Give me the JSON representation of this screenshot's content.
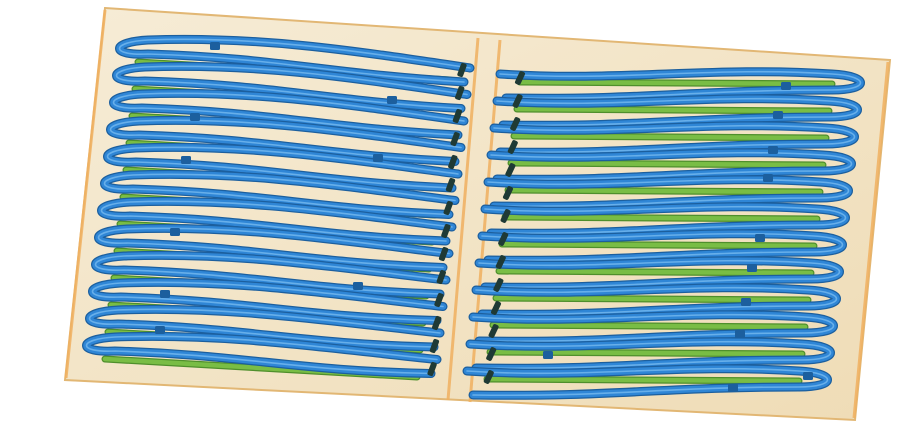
{
  "scene": {
    "subject": "3d-render-transparent-panel-with-looped-pipes",
    "colors": {
      "background": "#ffffff",
      "panel_fill": "#f3e6c8",
      "panel_edge": "#e2b774",
      "frame_orange": "#f0b060",
      "pipe_blue": "#2f86d6",
      "pipe_blue_dark": "#1c5f9e",
      "pipe_blue_light": "#7fc0f2",
      "pipe_green": "#79bd45",
      "pipe_green_dark": "#4f8f2c",
      "joint_dark": "#1f3a35"
    }
  }
}
